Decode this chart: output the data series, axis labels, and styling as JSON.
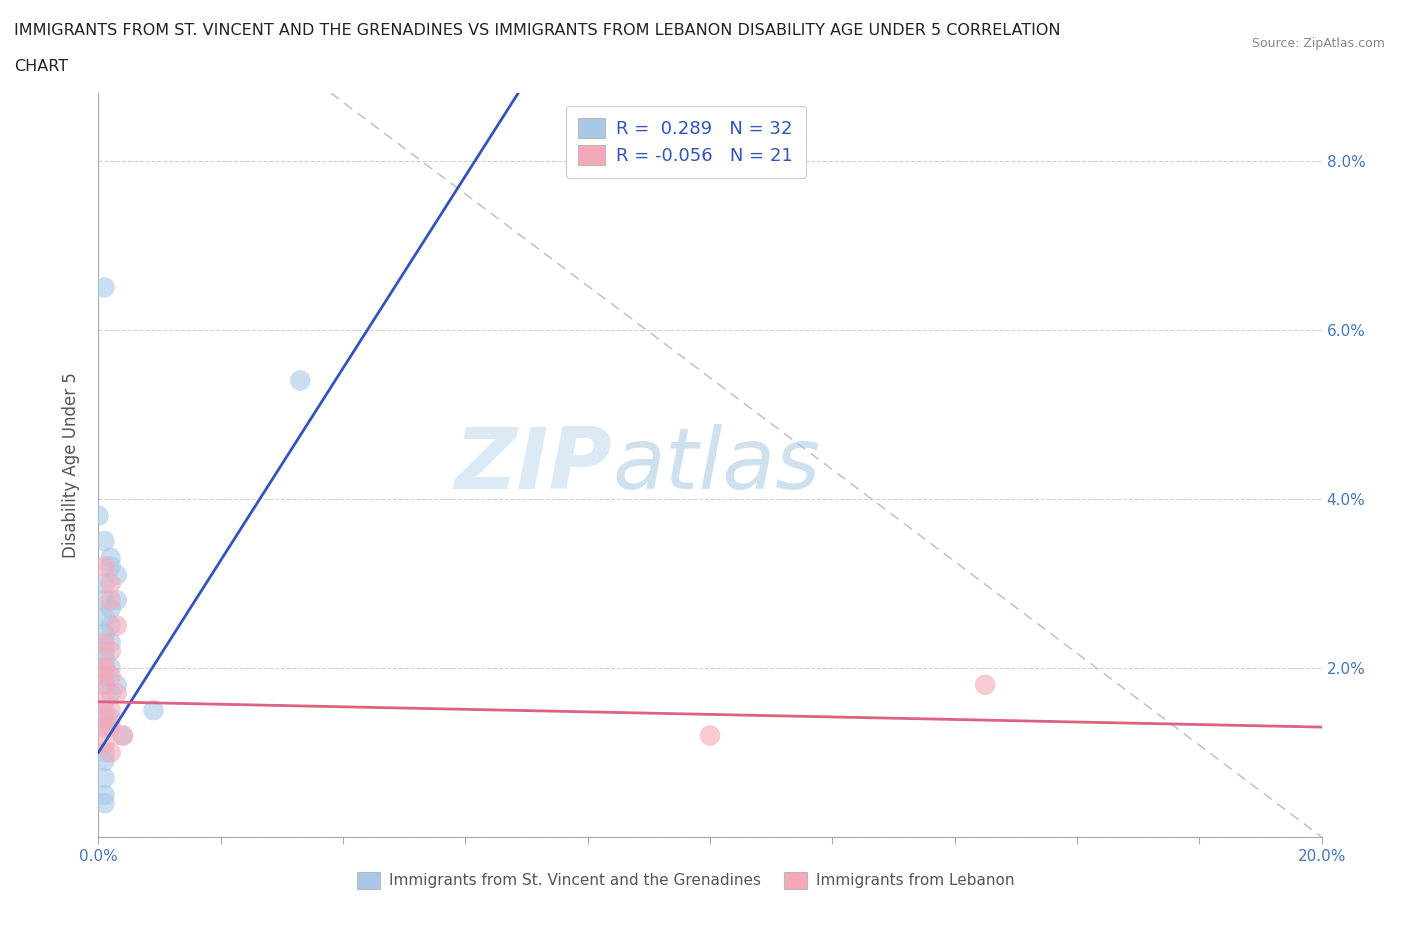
{
  "title_line1": "IMMIGRANTS FROM ST. VINCENT AND THE GRENADINES VS IMMIGRANTS FROM LEBANON DISABILITY AGE UNDER 5 CORRELATION",
  "title_line2": "CHART",
  "source_text": "Source: ZipAtlas.com",
  "ylabel": "Disability Age Under 5",
  "watermark_zip": "ZIP",
  "watermark_atlas": "atlas",
  "xlim": [
    0.0,
    0.2
  ],
  "ylim": [
    0.0,
    0.088
  ],
  "xticks": [
    0.0,
    0.02,
    0.04,
    0.06,
    0.08,
    0.1,
    0.12,
    0.14,
    0.16,
    0.18,
    0.2
  ],
  "yticks": [
    0.0,
    0.02,
    0.04,
    0.06,
    0.08
  ],
  "xtick_labels": [
    "0.0%",
    "",
    "",
    "",
    "",
    "",
    "",
    "",
    "",
    "",
    "20.0%"
  ],
  "ytick_labels_right": [
    "",
    "2.0%",
    "4.0%",
    "6.0%",
    "8.0%"
  ],
  "color_blue": "#a8c8e8",
  "color_pink": "#f4a8b8",
  "color_blue_line": "#3355bb",
  "color_pink_line": "#e06080",
  "color_dash": "#b0b8c8",
  "scatter_blue": [
    [
      0.001,
      0.065
    ],
    [
      0.0,
      0.038
    ],
    [
      0.033,
      0.054
    ],
    [
      0.001,
      0.035
    ],
    [
      0.002,
      0.032
    ],
    [
      0.001,
      0.03
    ],
    [
      0.002,
      0.033
    ],
    [
      0.003,
      0.031
    ],
    [
      0.001,
      0.028
    ],
    [
      0.002,
      0.027
    ],
    [
      0.001,
      0.026
    ],
    [
      0.002,
      0.025
    ],
    [
      0.003,
      0.028
    ],
    [
      0.001,
      0.024
    ],
    [
      0.002,
      0.023
    ],
    [
      0.001,
      0.022
    ],
    [
      0.001,
      0.021
    ],
    [
      0.002,
      0.02
    ],
    [
      0.001,
      0.019
    ],
    [
      0.001,
      0.018
    ],
    [
      0.002,
      0.017
    ],
    [
      0.003,
      0.018
    ],
    [
      0.001,
      0.015
    ],
    [
      0.002,
      0.014
    ],
    [
      0.001,
      0.013
    ],
    [
      0.009,
      0.015
    ],
    [
      0.004,
      0.012
    ],
    [
      0.001,
      0.01
    ],
    [
      0.001,
      0.009
    ],
    [
      0.001,
      0.007
    ],
    [
      0.001,
      0.005
    ],
    [
      0.001,
      0.004
    ]
  ],
  "scatter_pink": [
    [
      0.001,
      0.02
    ],
    [
      0.002,
      0.03
    ],
    [
      0.002,
      0.028
    ],
    [
      0.001,
      0.032
    ],
    [
      0.003,
      0.025
    ],
    [
      0.001,
      0.023
    ],
    [
      0.002,
      0.022
    ],
    [
      0.001,
      0.02
    ],
    [
      0.002,
      0.019
    ],
    [
      0.001,
      0.018
    ],
    [
      0.003,
      0.017
    ],
    [
      0.001,
      0.016
    ],
    [
      0.002,
      0.015
    ],
    [
      0.001,
      0.014
    ],
    [
      0.002,
      0.013
    ],
    [
      0.001,
      0.013
    ],
    [
      0.004,
      0.012
    ],
    [
      0.001,
      0.011
    ],
    [
      0.002,
      0.01
    ],
    [
      0.145,
      0.018
    ],
    [
      0.1,
      0.012
    ]
  ],
  "blue_line": [
    [
      0.0,
      0.01
    ],
    [
      0.022,
      0.035
    ]
  ],
  "pink_line": [
    [
      0.0,
      0.016
    ],
    [
      0.2,
      0.013
    ]
  ],
  "dash_line": [
    [
      0.038,
      0.088
    ],
    [
      0.2,
      0.0
    ]
  ],
  "background_color": "#ffffff",
  "grid_color": "#cccccc",
  "title_color": "#222222",
  "axis_label_color": "#555555",
  "tick_label_color": "#4477bb"
}
